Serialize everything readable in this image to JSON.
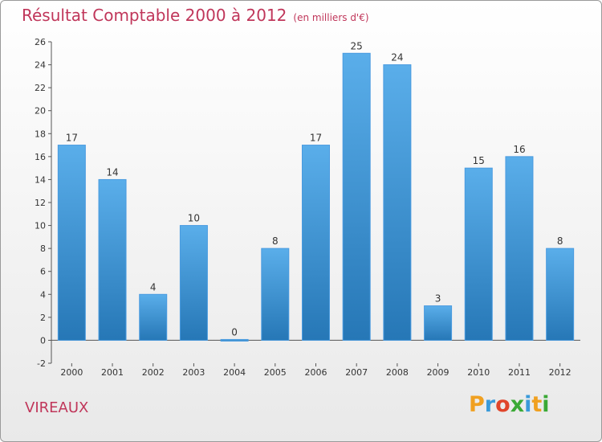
{
  "header": {
    "title": "Résultat Comptable 2000 à 2012",
    "subtitle": "(en milliers d'€)"
  },
  "footer": {
    "place": "VIREAUX",
    "logo": "Proxiti"
  },
  "colors": {
    "title": "#c0365a",
    "bar_light": "#5aaeea",
    "bar_dark": "#2677b6",
    "logo_letters": [
      "#f0a020",
      "#3a9ad9",
      "#e0452b",
      "#3aa935",
      "#3a9ad9",
      "#f0a020",
      "#3aa935"
    ]
  },
  "chart_data": {
    "type": "bar",
    "title": "Résultat Comptable 2000 à 2012",
    "subtitle": "(en milliers d'€)",
    "categories": [
      "2000",
      "2001",
      "2002",
      "2003",
      "2004",
      "2005",
      "2006",
      "2007",
      "2008",
      "2009",
      "2010",
      "2011",
      "2012"
    ],
    "values": [
      17,
      14,
      4,
      10,
      0,
      8,
      17,
      25,
      24,
      3,
      15,
      16,
      8
    ],
    "xlabel": "",
    "ylabel": "",
    "ylim": [
      -2,
      26
    ],
    "yticks": [
      -2,
      0,
      2,
      4,
      6,
      8,
      10,
      12,
      14,
      16,
      18,
      20,
      22,
      24,
      26
    ],
    "grid": false,
    "data_labels": true
  }
}
